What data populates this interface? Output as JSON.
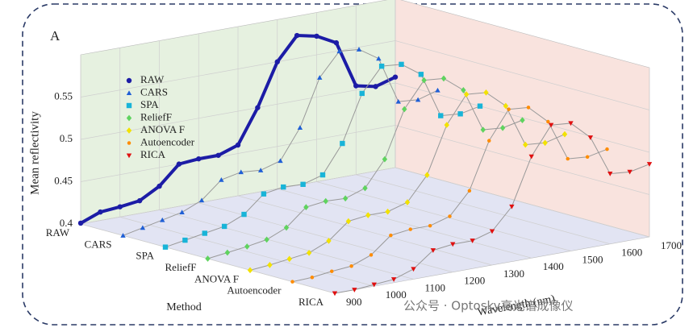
{
  "chart_data": {
    "type": "line3d",
    "panel_label": "A",
    "ylabel": "Mean reflectivity",
    "xlabel": "Wavelength (nm)",
    "zlabel": "Method",
    "watermark": "公众号 · Optosky高光谱成像仪",
    "x": [
      900,
      950,
      1000,
      1050,
      1100,
      1150,
      1200,
      1250,
      1300,
      1350,
      1400,
      1450,
      1500,
      1550,
      1600,
      1650,
      1700
    ],
    "xlim": [
      900,
      1700
    ],
    "xticks": [
      900,
      1000,
      1100,
      1200,
      1300,
      1400,
      1500,
      1600,
      1700
    ],
    "ylim": [
      0.4,
      0.6
    ],
    "yticks": [
      0.4,
      0.45,
      0.5,
      0.55
    ],
    "categories": [
      "RAW",
      "CARS",
      "SPA",
      "ReliefF",
      "ANOVA F",
      "Autoencoder",
      "RICA"
    ],
    "grid": true,
    "legend": "upper left",
    "series": [
      {
        "name": "RAW",
        "color": "#1c1ca6",
        "marker": "circle",
        "values": [
          0.401,
          0.41,
          0.412,
          0.415,
          0.428,
          0.45,
          0.452,
          0.452,
          0.46,
          0.5,
          0.55,
          0.577,
          0.572,
          0.56,
          0.505,
          0.5,
          0.507
        ]
      },
      {
        "name": "CARS",
        "color": "#1f5fd6",
        "marker": "triangle",
        "values": [
          0.4,
          0.405,
          0.41,
          0.415,
          0.425,
          0.445,
          0.45,
          0.448,
          0.455,
          0.49,
          0.545,
          0.572,
          0.57,
          0.555,
          0.5,
          0.498,
          0.505
        ]
      },
      {
        "name": "SPA",
        "color": "#18b4d8",
        "marker": "square",
        "values": [
          0.4,
          0.404,
          0.408,
          0.412,
          0.422,
          0.442,
          0.446,
          0.445,
          0.452,
          0.485,
          0.54,
          0.568,
          0.566,
          0.55,
          0.497,
          0.495,
          0.5
        ]
      },
      {
        "name": "ReliefF",
        "color": "#5fd35f",
        "marker": "diamond",
        "values": [
          0.4,
          0.403,
          0.406,
          0.41,
          0.42,
          0.44,
          0.443,
          0.442,
          0.45,
          0.48,
          0.535,
          0.565,
          0.563,
          0.545,
          0.494,
          0.492,
          0.497
        ]
      },
      {
        "name": "ANOVA F",
        "color": "#f2e200",
        "marker": "diamond",
        "values": [
          0.4,
          0.402,
          0.405,
          0.408,
          0.418,
          0.437,
          0.44,
          0.44,
          0.447,
          0.475,
          0.53,
          0.562,
          0.56,
          0.54,
          0.49,
          0.488,
          0.494
        ]
      },
      {
        "name": "Autoencoder",
        "color": "#ff8c00",
        "marker": "star",
        "values": [
          0.4,
          0.401,
          0.404,
          0.406,
          0.415,
          0.434,
          0.437,
          0.437,
          0.444,
          0.47,
          0.525,
          0.558,
          0.556,
          0.535,
          0.487,
          0.485,
          0.49
        ]
      },
      {
        "name": "RICA",
        "color": "#e01010",
        "marker": "triangle-down",
        "values": [
          0.4,
          0.4,
          0.402,
          0.404,
          0.412,
          0.43,
          0.433,
          0.433,
          0.44,
          0.465,
          0.52,
          0.553,
          0.551,
          0.53,
          0.483,
          0.481,
          0.486
        ]
      }
    ]
  }
}
